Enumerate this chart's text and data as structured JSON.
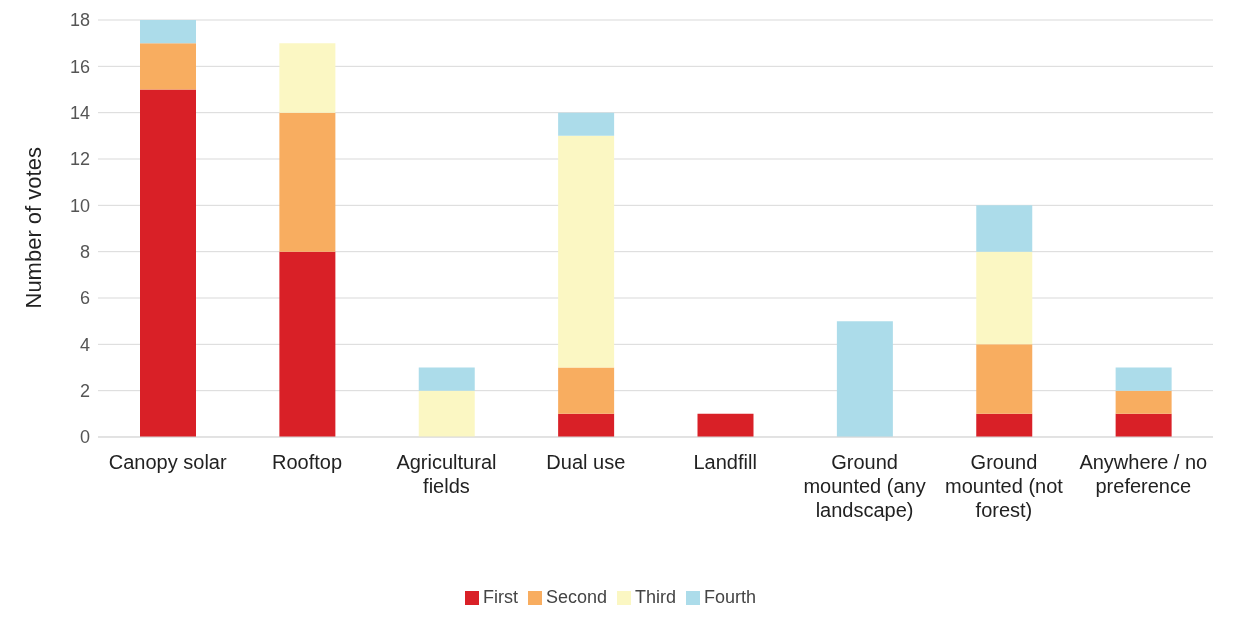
{
  "chart_data": {
    "type": "bar",
    "stacked": true,
    "ylabel": "Number of votes",
    "categories": [
      "Canopy solar",
      "Rooftop",
      "Agricultural fields",
      "Dual use",
      "Landfill",
      "Ground mounted (any landscape)",
      "Ground mounted (not forest)",
      "Anywhere / no preference"
    ],
    "series": [
      {
        "name": "First",
        "color": "#d92027",
        "values": [
          15,
          8,
          0,
          1,
          1,
          0,
          1,
          1
        ]
      },
      {
        "name": "Second",
        "color": "#f8ad60",
        "values": [
          2,
          6,
          0,
          2,
          0,
          0,
          3,
          1
        ]
      },
      {
        "name": "Third",
        "color": "#fbf7c3",
        "values": [
          0,
          3,
          2,
          10,
          0,
          0,
          4,
          0
        ]
      },
      {
        "name": "Fourth",
        "color": "#acdcea",
        "values": [
          1,
          0,
          1,
          1,
          0,
          5,
          2,
          1
        ]
      }
    ],
    "ylim": [
      0,
      18
    ],
    "yticks": [
      0,
      2,
      4,
      6,
      8,
      10,
      12,
      14,
      16,
      18
    ],
    "grid": "y",
    "legend": "bottom"
  }
}
